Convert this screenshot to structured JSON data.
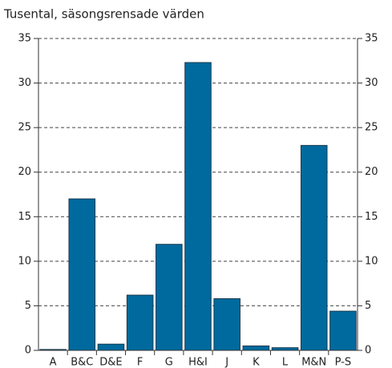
{
  "chart_data": {
    "type": "bar",
    "title": "Tusental, säsongsrensade värden",
    "categories": [
      "A",
      "B&C",
      "D&E",
      "F",
      "G",
      "H&I",
      "J",
      "K",
      "L",
      "M&N",
      "P-S"
    ],
    "values": [
      0.1,
      17,
      0.7,
      6.2,
      11.9,
      32.3,
      5.8,
      0.5,
      0.3,
      23,
      4.4
    ],
    "color": "#006a9e",
    "ylim": [
      0,
      35
    ],
    "yticks": [
      0,
      5,
      10,
      15,
      20,
      25,
      30,
      35
    ],
    "y2lim": [
      0,
      35
    ],
    "y2ticks": [
      0,
      5,
      10,
      15,
      20,
      25,
      30,
      35
    ],
    "grid": true
  }
}
